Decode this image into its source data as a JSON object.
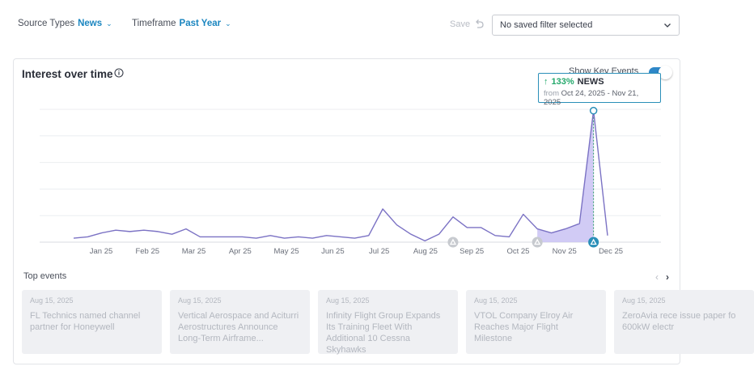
{
  "filters": {
    "source_label": "Source Types",
    "source_value": "News",
    "timeframe_label": "Timeframe",
    "timeframe_value": "Past Year"
  },
  "toolbar": {
    "save_label": "Save",
    "saved_filter_value": "No saved filter selected"
  },
  "card": {
    "title": "Interest over time",
    "key_events_label": "Show Key Events"
  },
  "tooltip": {
    "percent": "133%",
    "source": "NEWS",
    "from_label": "from",
    "range": "Oct 24, 2025 - Nov 21, 2025"
  },
  "chart_data": {
    "type": "area",
    "x_labels": [
      "Jan 25",
      "Feb 25",
      "Mar 25",
      "Apr 25",
      "May 25",
      "Jun 25",
      "Jul 25",
      "Aug 25",
      "Sep 25",
      "Oct 25",
      "Nov 25",
      "Dec 25"
    ],
    "values": [
      3,
      4,
      7,
      9,
      8,
      9,
      8,
      6,
      10,
      4,
      4,
      4,
      4,
      3,
      5,
      3,
      4,
      3,
      5,
      4,
      3,
      5,
      25,
      13,
      6,
      1,
      6,
      19,
      11,
      11,
      5,
      4,
      21,
      10,
      7,
      10,
      14,
      99,
      5
    ],
    "highlight_range": [
      33,
      38
    ],
    "ylim": [
      0,
      100
    ],
    "key_events": [
      27,
      33,
      37
    ],
    "grid": true,
    "colors": {
      "line": "#7b72c4",
      "highlight_fill": "#c9c2f3",
      "accent": "#2a8fb8"
    }
  },
  "top_events": {
    "label": "Top events",
    "items": [
      {
        "date": "Aug 15, 2025",
        "headline": "FL Technics named channel partner for Honeywell"
      },
      {
        "date": "Aug 15, 2025",
        "headline": "Vertical Aerospace and Aciturri Aerostructures Announce Long-Term Airframe..."
      },
      {
        "date": "Aug 15, 2025",
        "headline": "Infinity Flight Group Expands Its Training Fleet With Additional 10 Cessna Skyhawks"
      },
      {
        "date": "Aug 15, 2025",
        "headline": "VTOL Company Elroy Air Reaches Major Flight Milestone"
      },
      {
        "date": "Aug 15, 2025",
        "headline": "ZeroAvia rece issue paper fo 600kW electr"
      }
    ]
  }
}
